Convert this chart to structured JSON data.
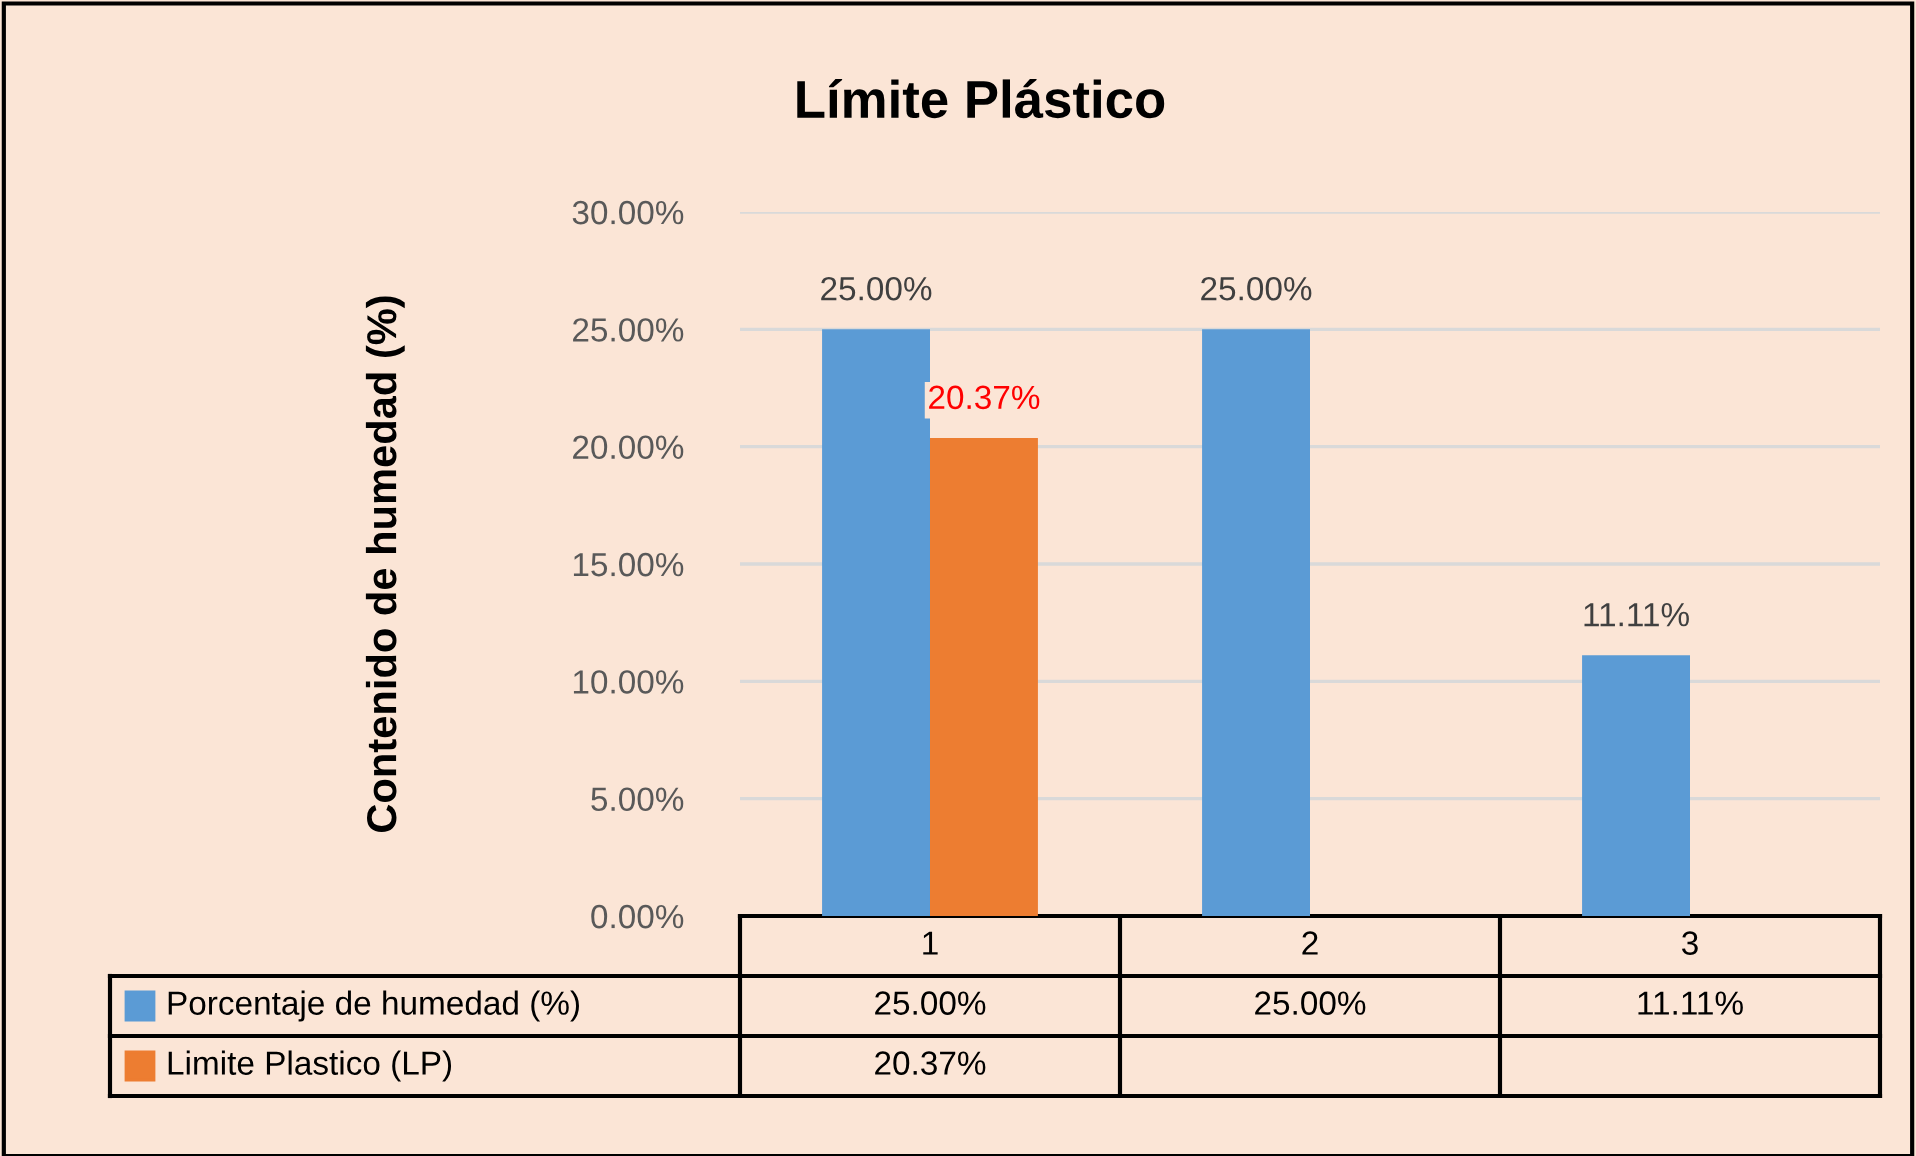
{
  "chart_data": {
    "type": "bar",
    "title": "Límite Plástico",
    "ylabel": "Contenido de humedad (%)",
    "categories": [
      "1",
      "2",
      "3"
    ],
    "series": [
      {
        "name": "Porcentaje de humedad (%)",
        "color": "#5b9bd5",
        "values": [
          25.0,
          25.0,
          11.11
        ],
        "value_labels": [
          "25.00%",
          "25.00%",
          "11.11%"
        ]
      },
      {
        "name": "Limite Plastico (LP)",
        "color": "#ed7d31",
        "values": [
          20.37,
          null,
          null
        ],
        "value_labels": [
          "20.37%",
          null,
          null
        ]
      }
    ],
    "ylim": [
      0,
      30
    ],
    "yticks": [
      {
        "value": 0,
        "label": "0.00%"
      },
      {
        "value": 5,
        "label": "5.00%"
      },
      {
        "value": 10,
        "label": "10.00%"
      },
      {
        "value": 15,
        "label": "15.00%"
      },
      {
        "value": 20,
        "label": "20.00%"
      },
      {
        "value": 25,
        "label": "25.00%"
      },
      {
        "value": 30,
        "label": "30.00%"
      }
    ],
    "grid": "y",
    "legend": "bottom"
  }
}
